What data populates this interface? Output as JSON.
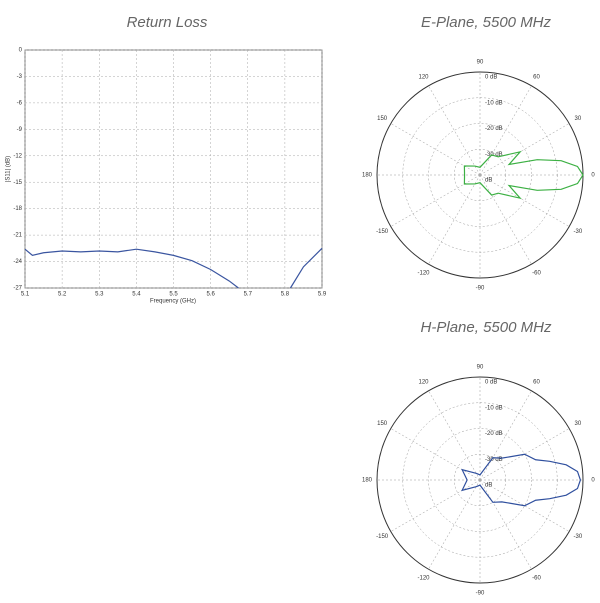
{
  "chart_data": [
    {
      "type": "line",
      "title": "Return Loss",
      "xlabel": "Frequency (GHz)",
      "ylabel": "|S11| (dB)",
      "x": [
        5.1,
        5.12,
        5.15,
        5.2,
        5.25,
        5.3,
        5.35,
        5.4,
        5.45,
        5.5,
        5.55,
        5.6,
        5.65,
        5.675,
        5.75,
        5.815,
        5.85,
        5.9
      ],
      "values": [
        -22.6,
        -23.3,
        -23.0,
        -22.8,
        -22.9,
        -22.8,
        -22.9,
        -22.6,
        -22.9,
        -23.3,
        -23.9,
        -24.9,
        -26.2,
        -27,
        null,
        -27,
        -24.6,
        -22.5
      ],
      "color": "#3a55a0",
      "xlim": [
        5.1,
        5.9
      ],
      "xticks": [
        5.1,
        5.2,
        5.3,
        5.4,
        5.5,
        5.6,
        5.7,
        5.8,
        5.9
      ],
      "ylim": [
        -27,
        0
      ],
      "yticks": [
        0,
        -3,
        -6,
        -9,
        -12,
        -15,
        -18,
        -21,
        -24,
        -27
      ],
      "grid": true
    },
    {
      "type": "polar",
      "title": "E-Plane, 5500 MHz",
      "theta": [
        -180,
        -150,
        -120,
        -90,
        -60,
        -45,
        -30,
        -20,
        -15,
        -10,
        -5,
        0,
        5,
        10,
        15,
        20,
        30,
        45,
        60,
        90,
        120,
        150,
        180
      ],
      "values": [
        -34,
        -33,
        -36,
        -37,
        -31,
        -30,
        -22,
        -28,
        -17,
        -8,
        -2,
        0,
        -2,
        -8,
        -17,
        -28,
        -22,
        -30,
        -31,
        -37,
        -36,
        -33,
        -34
      ],
      "color": "#3cb043",
      "rlim": [
        -40,
        0
      ],
      "rticks": [
        {
          "value": 0,
          "label": "0 dB"
        },
        {
          "value": -10,
          "label": "-10 dB"
        },
        {
          "value": -20,
          "label": "-20 dB"
        },
        {
          "value": -30,
          "label": "-30 dB"
        },
        {
          "value": -40,
          "label": "dB"
        }
      ],
      "thetaticks": [
        0,
        30,
        60,
        90,
        120,
        150,
        180,
        -150,
        -120,
        -90,
        -60,
        -30
      ],
      "grid": true
    },
    {
      "type": "polar",
      "title": "H-Plane, 5500 MHz",
      "theta": [
        -180,
        -150,
        -120,
        -90,
        -60,
        -45,
        -30,
        -20,
        -15,
        -10,
        -5,
        0,
        5,
        10,
        15,
        20,
        30,
        45,
        60,
        90,
        120,
        150,
        180
      ],
      "values": [
        -35,
        -32,
        -37,
        -38,
        -30,
        -28,
        -20,
        -17,
        -12,
        -6,
        -2,
        -1,
        -2,
        -6,
        -12,
        -17,
        -20,
        -28,
        -30,
        -38,
        -37,
        -32,
        -35
      ],
      "color": "#2f4f9e",
      "rlim": [
        -40,
        0
      ],
      "rticks": [
        {
          "value": 0,
          "label": "0 dB"
        },
        {
          "value": -10,
          "label": "-10 dB"
        },
        {
          "value": -20,
          "label": "-20 dB"
        },
        {
          "value": -30,
          "label": "-30 dB"
        },
        {
          "value": -40,
          "label": "dB"
        }
      ],
      "thetaticks": [
        0,
        30,
        60,
        90,
        120,
        150,
        180,
        -150,
        -120,
        -90,
        -60,
        -30
      ],
      "grid": true
    }
  ]
}
